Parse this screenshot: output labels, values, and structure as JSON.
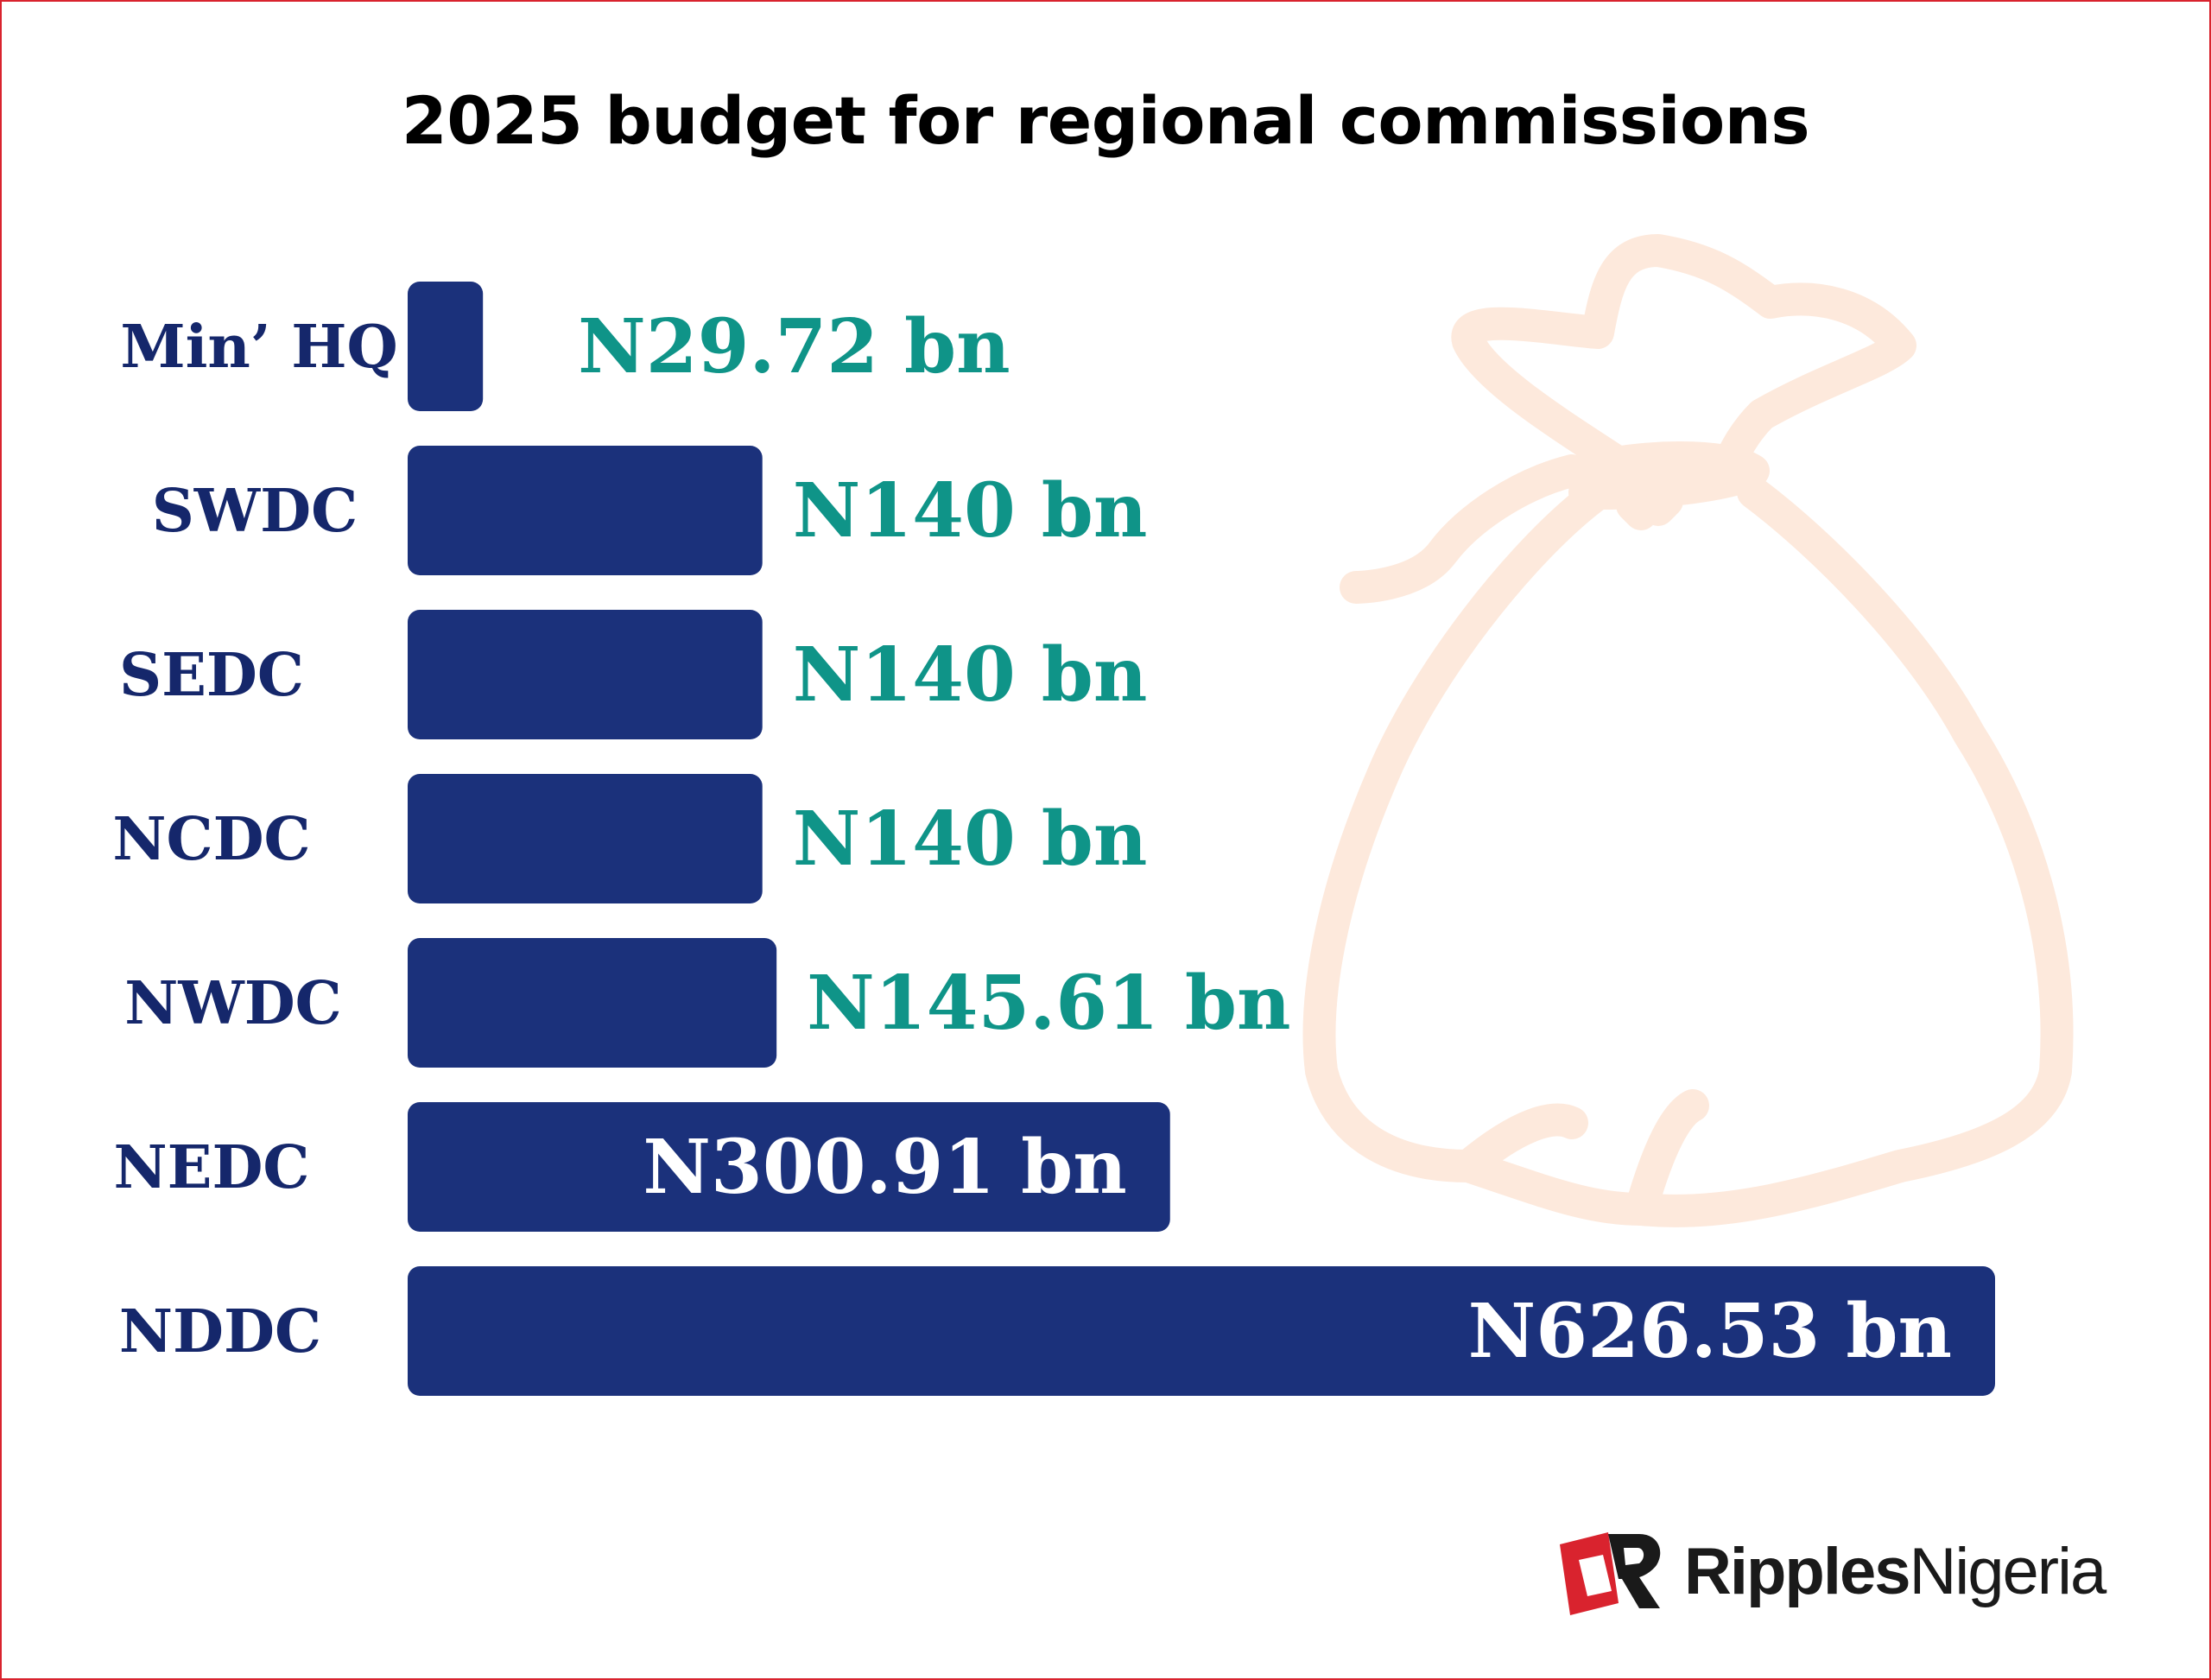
{
  "colors": {
    "bar": "#1b317b",
    "category_label": "#15276b",
    "value_outside": "#0f9488",
    "value_inside": "#ffffff",
    "bag": "#fde9dc",
    "brand": "#d9232e"
  },
  "chart_data": {
    "type": "bar",
    "orientation": "horizontal",
    "title": "2025 budget for regional commissions",
    "categories": [
      "Min’ HQ",
      "SWDC",
      "SEDC",
      "NCDC",
      "NWDC",
      "NEDC",
      "NDDC"
    ],
    "values": [
      29.72,
      140,
      140,
      140,
      145.61,
      300.91,
      626.53
    ],
    "value_labels": [
      "N29.72 bn",
      "N140 bn",
      "N140 bn",
      "N140 bn",
      "N145.61 bn",
      "N300.91 bn",
      "N626.53 bn"
    ],
    "unit": "bn",
    "xlim": [
      0,
      626.53
    ],
    "grid": false,
    "legend": "none"
  },
  "logo": {
    "word1": "Ripples",
    "word2": "Nigeria",
    "icon": "ripples-r-logo-icon"
  },
  "decoration": {
    "icon": "money-bag-icon"
  }
}
